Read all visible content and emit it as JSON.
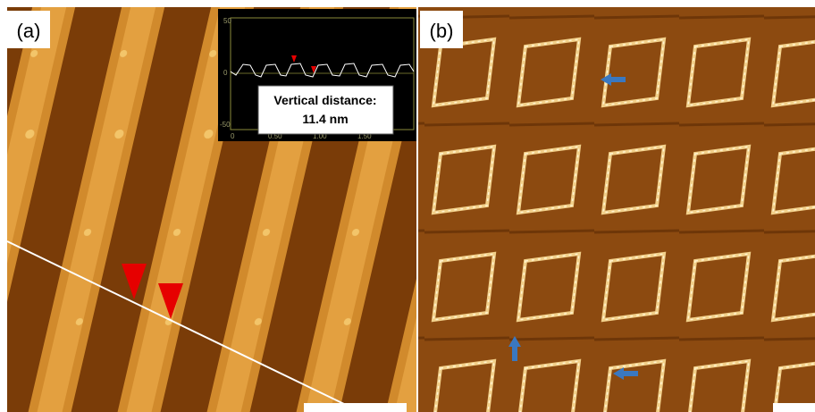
{
  "panels": [
    {
      "label": "(a)",
      "inset": {
        "y_ticks": [
          "50",
          "0",
          "-50"
        ],
        "x_ticks": [
          "0",
          "0.50",
          "1.00",
          "1.50"
        ],
        "annotation": {
          "line1": "Vertical distance:",
          "line2": "11.4 nm"
        }
      }
    },
    {
      "label": "(b)"
    }
  ]
}
